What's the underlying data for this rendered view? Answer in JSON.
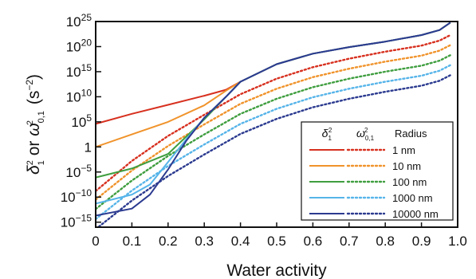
{
  "chart_data": {
    "type": "line",
    "xlabel": "Water activity",
    "ylabel": "δ₁² or ω₀,₁² (s⁻²)",
    "ylabel_parts": {
      "a": "δ",
      "a_sub": "1",
      "a_sup": "2",
      "or": " or ",
      "b": "ω",
      "b_sub": "0,1",
      "b_sup": "2",
      "units_open": " (s",
      "units_sup": "−2",
      "units_close": ")"
    },
    "xlim": [
      0,
      1
    ],
    "x_ticks": [
      0,
      0.1,
      0.2,
      0.3,
      0.4,
      0.5,
      0.6,
      0.7,
      0.8,
      0.9,
      1.0
    ],
    "x_tick_labels": [
      "0",
      "0.1",
      "0.2",
      "0.3",
      "0.4",
      "0.5",
      "0.6",
      "0.7",
      "0.8",
      "0.9",
      "1.0"
    ],
    "yscale": "log",
    "ylim_log10": [
      -16,
      25
    ],
    "y_ticks": [
      {
        "log10": 25,
        "base": "10",
        "exp": "25"
      },
      {
        "log10": 20,
        "base": "10",
        "exp": "20"
      },
      {
        "log10": 15,
        "base": "10",
        "exp": "15"
      },
      {
        "log10": 10,
        "base": "10",
        "exp": "10"
      },
      {
        "log10": 5,
        "base": "10",
        "exp": "5"
      },
      {
        "log10": 0,
        "base": "1",
        "exp": ""
      },
      {
        "log10": -5,
        "base": "10",
        "exp": "−5"
      },
      {
        "log10": -10,
        "base": "10",
        "exp": "−10"
      },
      {
        "log10": -15,
        "base": "10",
        "exp": "−15"
      }
    ],
    "grid": false,
    "legend": {
      "placement": "bottom-right",
      "col1_base": "δ",
      "col1_sub": "1",
      "col1_sup": "2",
      "col2_base": "ω",
      "col2_sub": "0,1",
      "col2_sup": "2",
      "col3": "Radius"
    },
    "series": [
      {
        "name": "1 nm",
        "color": "#d7301f",
        "delta_log10": {
          "x": [
            0,
            0.1,
            0.2,
            0.3,
            0.36,
            0.4,
            0.5,
            0.6,
            0.7,
            0.8,
            0.9,
            0.95,
            0.98
          ],
          "y": [
            4.6,
            6.6,
            8.4,
            10.2,
            11.4,
            13.0,
            16.5,
            18.6,
            19.9,
            21.0,
            22.3,
            23.3,
            24.8
          ]
        },
        "omega_log10": {
          "x": [
            0,
            0.1,
            0.2,
            0.3,
            0.4,
            0.5,
            0.6,
            0.7,
            0.8,
            0.9,
            0.95,
            0.98
          ],
          "y": [
            -8.8,
            -2.8,
            2.2,
            6.4,
            10.5,
            13.6,
            15.9,
            17.6,
            19.0,
            20.2,
            21.2,
            22.3
          ]
        }
      },
      {
        "name": "10 nm",
        "color": "#f0932b",
        "delta_log10": {
          "x": [
            0,
            0.1,
            0.2,
            0.3,
            0.36,
            0.4,
            0.5,
            0.6,
            0.7,
            0.8,
            0.9,
            0.95,
            0.98
          ],
          "y": [
            0,
            2.5,
            5.0,
            8.3,
            11.2,
            13.0,
            16.5,
            18.6,
            19.9,
            21.0,
            22.3,
            23.3,
            24.8
          ]
        },
        "omega_log10": {
          "x": [
            0,
            0.1,
            0.2,
            0.3,
            0.4,
            0.5,
            0.6,
            0.7,
            0.8,
            0.9,
            0.95,
            0.98
          ],
          "y": [
            -10.5,
            -4.7,
            0.2,
            4.5,
            8.6,
            11.6,
            13.9,
            15.6,
            17.0,
            18.2,
            19.2,
            20.3
          ]
        }
      },
      {
        "name": "100 nm",
        "color": "#3f9e3f",
        "delta_log10": {
          "x": [
            0,
            0.1,
            0.2,
            0.3,
            0.36,
            0.4,
            0.5,
            0.6,
            0.7,
            0.8,
            0.9,
            0.95,
            0.98
          ],
          "y": [
            -6.1,
            -4.3,
            -1.4,
            5.5,
            10.0,
            13.0,
            16.5,
            18.6,
            19.9,
            21.0,
            22.3,
            23.3,
            24.8
          ]
        },
        "omega_log10": {
          "x": [
            0,
            0.1,
            0.2,
            0.3,
            0.4,
            0.5,
            0.6,
            0.7,
            0.8,
            0.9,
            0.95,
            0.98
          ],
          "y": [
            -12.4,
            -6.7,
            -1.8,
            2.5,
            6.6,
            9.6,
            11.9,
            13.6,
            15.0,
            16.2,
            17.2,
            18.3
          ]
        }
      },
      {
        "name": "1000 nm",
        "color": "#56b4e9",
        "delta_log10": {
          "x": [
            0,
            0.1,
            0.15,
            0.2,
            0.25,
            0.3,
            0.36,
            0.4,
            0.5,
            0.6,
            0.7,
            0.8,
            0.9,
            0.95,
            0.98
          ],
          "y": [
            -11.3,
            -9.5,
            -7.5,
            -3.0,
            1.5,
            5.8,
            10.0,
            13.0,
            16.5,
            18.6,
            19.9,
            21.0,
            22.3,
            23.3,
            24.8
          ]
        },
        "omega_log10": {
          "x": [
            0,
            0.1,
            0.2,
            0.3,
            0.4,
            0.5,
            0.6,
            0.7,
            0.8,
            0.9,
            0.95,
            0.98
          ],
          "y": [
            -14.4,
            -8.7,
            -3.8,
            0.5,
            4.6,
            7.6,
            9.9,
            11.6,
            13.0,
            14.2,
            15.2,
            16.3
          ]
        }
      },
      {
        "name": "10000 nm",
        "color": "#2b3a8f",
        "delta_log10": {
          "x": [
            0,
            0.1,
            0.15,
            0.2,
            0.25,
            0.3,
            0.36,
            0.4,
            0.5,
            0.6,
            0.7,
            0.8,
            0.9,
            0.95,
            0.98
          ],
          "y": [
            -13.7,
            -12.3,
            -9.5,
            -4.5,
            1.2,
            5.8,
            10.0,
            13.0,
            16.5,
            18.6,
            19.9,
            21.0,
            22.3,
            23.3,
            24.8
          ]
        },
        "omega_log10": {
          "x": [
            0,
            0.1,
            0.2,
            0.3,
            0.4,
            0.5,
            0.6,
            0.7,
            0.8,
            0.9,
            0.95,
            0.98
          ],
          "y": [
            -16.4,
            -10.7,
            -5.8,
            -1.5,
            2.6,
            5.6,
            7.9,
            9.6,
            11.0,
            12.2,
            13.2,
            14.3
          ]
        }
      }
    ]
  }
}
